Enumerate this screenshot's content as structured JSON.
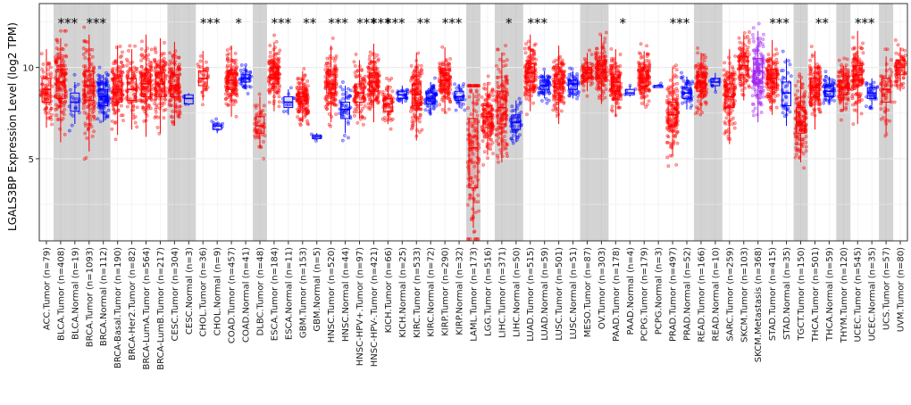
{
  "chart_data": {
    "type": "box",
    "ylabel": "LGALS3BP Expression Level (log2 TPM)",
    "ylim": [
      0.5,
      13.5
    ],
    "yticks": [
      5,
      10
    ],
    "grid": true,
    "colors": {
      "Tumor": "#ff0000",
      "Normal": "#0000ff",
      "Metastasis": "#a020f0",
      "shade": "#d3d3d3"
    },
    "categories": [
      {
        "label": "ACC.Tumor (n=79)",
        "type": "Tumor",
        "q1": 8.1,
        "median": 8.8,
        "q3": 9.4,
        "low": 6.7,
        "high": 11.0,
        "n": 79,
        "sig": "",
        "shade": false
      },
      {
        "label": "BLCA.Tumor (n=408)",
        "type": "Tumor",
        "q1": 8.3,
        "median": 9.2,
        "q3": 9.9,
        "low": 5.9,
        "high": 11.6,
        "n": 408,
        "sig": "***",
        "shade": true
      },
      {
        "label": "BLCA.Normal (n=19)",
        "type": "Normal",
        "q1": 7.6,
        "median": 8.1,
        "q3": 8.6,
        "low": 6.9,
        "high": 9.2,
        "n": 19,
        "sig": "",
        "shade": true
      },
      {
        "label": "BRCA.Tumor (n=1093)",
        "type": "Tumor",
        "q1": 8.2,
        "median": 9.0,
        "q3": 9.8,
        "low": 5.4,
        "high": 11.8,
        "n": 1093,
        "sig": "***",
        "shade": true
      },
      {
        "label": "BRCA.Normal (n=112)",
        "type": "Normal",
        "q1": 7.9,
        "median": 8.4,
        "q3": 8.8,
        "low": 7.0,
        "high": 9.6,
        "n": 112,
        "sig": "",
        "shade": true
      },
      {
        "label": "BRCA-Basal.Tumor (n=190)",
        "type": "Tumor",
        "q1": 8.1,
        "median": 8.8,
        "q3": 9.4,
        "low": 6.3,
        "high": 11.2,
        "n": 190,
        "sig": "",
        "shade": false
      },
      {
        "label": "BRCA-Her2.Tumor (n=82)",
        "type": "Tumor",
        "q1": 8.2,
        "median": 8.8,
        "q3": 9.4,
        "low": 6.6,
        "high": 11.0,
        "n": 82,
        "sig": "",
        "shade": false
      },
      {
        "label": "BRCA-LumA.Tumor (n=564)",
        "type": "Tumor",
        "q1": 8.4,
        "median": 9.1,
        "q3": 9.7,
        "low": 6.2,
        "high": 11.8,
        "n": 564,
        "sig": "",
        "shade": false
      },
      {
        "label": "BRCA-LumB.Tumor (n=217)",
        "type": "Tumor",
        "q1": 8.4,
        "median": 9.1,
        "q3": 9.7,
        "low": 6.4,
        "high": 11.6,
        "n": 217,
        "sig": "",
        "shade": false
      },
      {
        "label": "CESC.Tumor (n=304)",
        "type": "Tumor",
        "q1": 8.4,
        "median": 9.0,
        "q3": 9.6,
        "low": 6.8,
        "high": 11.4,
        "n": 304,
        "sig": "",
        "shade": true
      },
      {
        "label": "CESC.Normal (n=3)",
        "type": "Normal",
        "q1": 8.0,
        "median": 8.3,
        "q3": 8.5,
        "low": 7.9,
        "high": 8.6,
        "n": 3,
        "sig": "",
        "shade": true
      },
      {
        "label": "CHOL.Tumor (n=36)",
        "type": "Tumor",
        "q1": 9.0,
        "median": 9.4,
        "q3": 9.8,
        "low": 8.2,
        "high": 10.9,
        "n": 36,
        "sig": "***",
        "shade": false
      },
      {
        "label": "CHOL.Normal (n=9)",
        "type": "Normal",
        "q1": 6.6,
        "median": 6.8,
        "q3": 6.9,
        "low": 6.4,
        "high": 7.0,
        "n": 9,
        "sig": "",
        "shade": false
      },
      {
        "label": "COAD.Tumor (n=457)",
        "type": "Tumor",
        "q1": 8.8,
        "median": 9.3,
        "q3": 9.7,
        "low": 7.3,
        "high": 11.2,
        "n": 457,
        "sig": "*",
        "shade": false
      },
      {
        "label": "COAD.Normal (n=41)",
        "type": "Normal",
        "q1": 9.2,
        "median": 9.4,
        "q3": 9.6,
        "low": 8.8,
        "high": 10.1,
        "n": 41,
        "sig": "",
        "shade": false
      },
      {
        "label": "DLBC.Tumor (n=48)",
        "type": "Tumor",
        "q1": 6.4,
        "median": 6.8,
        "q3": 7.3,
        "low": 5.6,
        "high": 8.4,
        "n": 48,
        "sig": "",
        "shade": true
      },
      {
        "label": "ESCA.Tumor (n=184)",
        "type": "Tumor",
        "q1": 9.1,
        "median": 9.6,
        "q3": 10.0,
        "low": 7.6,
        "high": 11.4,
        "n": 184,
        "sig": "***",
        "shade": false
      },
      {
        "label": "ESCA.Normal (n=11)",
        "type": "Normal",
        "q1": 7.8,
        "median": 8.1,
        "q3": 8.4,
        "low": 7.4,
        "high": 8.8,
        "n": 11,
        "sig": "",
        "shade": false
      },
      {
        "label": "GBM.Tumor (n=153)",
        "type": "Tumor",
        "q1": 8.0,
        "median": 8.4,
        "q3": 8.8,
        "low": 7.0,
        "high": 9.8,
        "n": 153,
        "sig": "**",
        "shade": false
      },
      {
        "label": "GBM.Normal (n=5)",
        "type": "Normal",
        "q1": 6.1,
        "median": 6.2,
        "q3": 6.3,
        "low": 6.0,
        "high": 6.4,
        "n": 5,
        "sig": "",
        "shade": false
      },
      {
        "label": "HNSC.Tumor (n=520)",
        "type": "Tumor",
        "q1": 8.6,
        "median": 9.1,
        "q3": 9.6,
        "low": 7.0,
        "high": 11.2,
        "n": 520,
        "sig": "***",
        "shade": false
      },
      {
        "label": "HNSC.Normal (n=44)",
        "type": "Normal",
        "q1": 7.2,
        "median": 7.7,
        "q3": 8.1,
        "low": 6.4,
        "high": 9.0,
        "n": 44,
        "sig": "",
        "shade": false
      },
      {
        "label": "HNSC-HPV+.Tumor (n=97)",
        "type": "Tumor",
        "q1": 8.1,
        "median": 8.6,
        "q3": 9.1,
        "low": 7.2,
        "high": 10.4,
        "n": 97,
        "sig": "***",
        "shade": false
      },
      {
        "label": "HNSC-HPV-.Tumor (n=421)",
        "type": "Tumor",
        "q1": 8.7,
        "median": 9.2,
        "q3": 9.7,
        "low": 7.0,
        "high": 11.3,
        "n": 421,
        "sig": "***",
        "shade": false
      },
      {
        "label": "KICH.Tumor (n=66)",
        "type": "Tumor",
        "q1": 7.6,
        "median": 8.0,
        "q3": 8.3,
        "low": 6.9,
        "high": 9.0,
        "n": 66,
        "sig": "***",
        "shade": false
      },
      {
        "label": "KICH.Normal (n=25)",
        "type": "Normal",
        "q1": 8.3,
        "median": 8.5,
        "q3": 8.7,
        "low": 8.0,
        "high": 9.0,
        "n": 25,
        "sig": "",
        "shade": false
      },
      {
        "label": "KIRC.Tumor (n=533)",
        "type": "Tumor",
        "q1": 7.9,
        "median": 8.5,
        "q3": 9.1,
        "low": 6.0,
        "high": 10.8,
        "n": 533,
        "sig": "**",
        "shade": false
      },
      {
        "label": "KIRC.Normal (n=72)",
        "type": "Normal",
        "q1": 8.0,
        "median": 8.3,
        "q3": 8.6,
        "low": 7.4,
        "high": 9.2,
        "n": 72,
        "sig": "",
        "shade": false
      },
      {
        "label": "KIRP.Tumor (n=290)",
        "type": "Tumor",
        "q1": 8.8,
        "median": 9.3,
        "q3": 9.7,
        "low": 7.5,
        "high": 11.1,
        "n": 290,
        "sig": "***",
        "shade": false
      },
      {
        "label": "KIRP.Normal (n=32)",
        "type": "Normal",
        "q1": 8.2,
        "median": 8.4,
        "q3": 8.7,
        "low": 7.8,
        "high": 9.1,
        "n": 32,
        "sig": "",
        "shade": false
      },
      {
        "label": "LAML.Tumor (n=173)",
        "type": "Tumor",
        "q1": 3.4,
        "median": 5.6,
        "q3": 7.2,
        "low": 1.2,
        "high": 8.6,
        "n": 173,
        "sig": "",
        "shade": true
      },
      {
        "label": "LGG.Tumor (n=516)",
        "type": "Tumor",
        "q1": 6.7,
        "median": 7.3,
        "q3": 7.9,
        "low": 5.2,
        "high": 9.2,
        "n": 516,
        "sig": "",
        "shade": false
      },
      {
        "label": "LIHC.Tumor (n=371)",
        "type": "Tumor",
        "q1": 6.9,
        "median": 7.8,
        "q3": 8.7,
        "low": 4.8,
        "high": 10.8,
        "n": 371,
        "sig": "*",
        "shade": true
      },
      {
        "label": "LIHC.Normal (n=50)",
        "type": "Normal",
        "q1": 6.6,
        "median": 7.0,
        "q3": 7.4,
        "low": 5.9,
        "high": 8.2,
        "n": 50,
        "sig": "",
        "shade": true
      },
      {
        "label": "LUAD.Tumor (n=515)",
        "type": "Tumor",
        "q1": 9.2,
        "median": 9.7,
        "q3": 10.2,
        "low": 7.6,
        "high": 11.8,
        "n": 515,
        "sig": "***",
        "shade": false
      },
      {
        "label": "LUAD.Normal (n=59)",
        "type": "Normal",
        "q1": 8.8,
        "median": 9.0,
        "q3": 9.3,
        "low": 8.3,
        "high": 9.8,
        "n": 59,
        "sig": "",
        "shade": false
      },
      {
        "label": "LUSC.Tumor (n=501)",
        "type": "Tumor",
        "q1": 8.6,
        "median": 9.1,
        "q3": 9.6,
        "low": 6.9,
        "high": 11.2,
        "n": 501,
        "sig": "",
        "shade": false
      },
      {
        "label": "LUSC.Normal (n=51)",
        "type": "Normal",
        "q1": 8.8,
        "median": 9.1,
        "q3": 9.3,
        "low": 8.3,
        "high": 9.8,
        "n": 51,
        "sig": "",
        "shade": false
      },
      {
        "label": "MESO.Tumor (n=87)",
        "type": "Tumor",
        "q1": 9.4,
        "median": 9.7,
        "q3": 10.0,
        "low": 8.7,
        "high": 10.8,
        "n": 87,
        "sig": "",
        "shade": true
      },
      {
        "label": "OV.Tumor (n=303)",
        "type": "Tumor",
        "q1": 9.4,
        "median": 9.9,
        "q3": 10.4,
        "low": 8.0,
        "high": 11.8,
        "n": 303,
        "sig": "",
        "shade": true
      },
      {
        "label": "PAAD.Tumor (n=178)",
        "type": "Tumor",
        "q1": 8.7,
        "median": 9.2,
        "q3": 9.6,
        "low": 7.3,
        "high": 11.0,
        "n": 178,
        "sig": "*",
        "shade": false
      },
      {
        "label": "PAAD.Normal (n=4)",
        "type": "Normal",
        "q1": 8.5,
        "median": 8.6,
        "q3": 8.8,
        "low": 8.4,
        "high": 9.0,
        "n": 4,
        "sig": "",
        "shade": false
      },
      {
        "label": "PCPG.Tumor (n=179)",
        "type": "Tumor",
        "q1": 9.0,
        "median": 9.4,
        "q3": 9.8,
        "low": 7.9,
        "high": 10.9,
        "n": 179,
        "sig": "",
        "shade": false
      },
      {
        "label": "PCPG.Normal (n=3)",
        "type": "Normal",
        "q1": 8.9,
        "median": 9.0,
        "q3": 9.0,
        "low": 8.9,
        "high": 9.1,
        "n": 3,
        "sig": "",
        "shade": false
      },
      {
        "label": "PRAD.Tumor (n=497)",
        "type": "Tumor",
        "q1": 6.8,
        "median": 7.4,
        "q3": 8.1,
        "low": 5.2,
        "high": 10.0,
        "n": 497,
        "sig": "***",
        "shade": false
      },
      {
        "label": "PRAD.Normal (n=52)",
        "type": "Normal",
        "q1": 8.3,
        "median": 8.6,
        "q3": 8.9,
        "low": 7.7,
        "high": 9.5,
        "n": 52,
        "sig": "",
        "shade": false
      },
      {
        "label": "READ.Tumor (n=166)",
        "type": "Tumor",
        "q1": 8.7,
        "median": 9.2,
        "q3": 9.6,
        "low": 7.6,
        "high": 10.8,
        "n": 166,
        "sig": "",
        "shade": true
      },
      {
        "label": "READ.Normal (n=10)",
        "type": "Normal",
        "q1": 9.0,
        "median": 9.2,
        "q3": 9.4,
        "low": 8.7,
        "high": 9.7,
        "n": 10,
        "sig": "",
        "shade": true
      },
      {
        "label": "SARC.Tumor (n=259)",
        "type": "Tumor",
        "q1": 7.8,
        "median": 8.4,
        "q3": 9.1,
        "low": 5.8,
        "high": 11.0,
        "n": 259,
        "sig": "",
        "shade": false
      },
      {
        "label": "SKCM.Tumor (n=103)",
        "type": "Tumor",
        "q1": 9.6,
        "median": 10.1,
        "q3": 10.6,
        "low": 8.2,
        "high": 11.8,
        "n": 103,
        "sig": "",
        "shade": false
      },
      {
        "label": "SKCM.Metastasis (n=368)",
        "type": "Metastasis",
        "q1": 9.1,
        "median": 9.8,
        "q3": 10.5,
        "low": 7.0,
        "high": 12.0,
        "n": 368,
        "sig": "",
        "shade": false
      },
      {
        "label": "STAD.Tumor (n=415)",
        "type": "Tumor",
        "q1": 8.9,
        "median": 9.4,
        "q3": 9.9,
        "low": 7.4,
        "high": 11.5,
        "n": 415,
        "sig": "***",
        "shade": false
      },
      {
        "label": "STAD.Normal (n=35)",
        "type": "Normal",
        "q1": 7.9,
        "median": 8.6,
        "q3": 9.2,
        "low": 6.8,
        "high": 10.5,
        "n": 35,
        "sig": "",
        "shade": false
      },
      {
        "label": "TGCT.Tumor (n=150)",
        "type": "Tumor",
        "q1": 6.4,
        "median": 7.0,
        "q3": 7.8,
        "low": 4.8,
        "high": 9.4,
        "n": 150,
        "sig": "",
        "shade": true
      },
      {
        "label": "THCA.Tumor (n=501)",
        "type": "Tumor",
        "q1": 8.4,
        "median": 8.9,
        "q3": 9.4,
        "low": 6.6,
        "high": 10.9,
        "n": 501,
        "sig": "**",
        "shade": false
      },
      {
        "label": "THCA.Normal (n=59)",
        "type": "Normal",
        "q1": 8.4,
        "median": 8.7,
        "q3": 9.0,
        "low": 8.0,
        "high": 9.5,
        "n": 59,
        "sig": "",
        "shade": false
      },
      {
        "label": "THYM.Tumor (n=120)",
        "type": "Tumor",
        "q1": 8.5,
        "median": 8.9,
        "q3": 9.3,
        "low": 7.6,
        "high": 10.1,
        "n": 120,
        "sig": "",
        "shade": true
      },
      {
        "label": "UCEC.Tumor (n=545)",
        "type": "Tumor",
        "q1": 9.0,
        "median": 9.6,
        "q3": 10.1,
        "low": 6.9,
        "high": 12.0,
        "n": 545,
        "sig": "***",
        "shade": false
      },
      {
        "label": "UCEC.Normal (n=35)",
        "type": "Normal",
        "q1": 8.3,
        "median": 8.6,
        "q3": 8.9,
        "low": 7.9,
        "high": 9.4,
        "n": 35,
        "sig": "",
        "shade": false
      },
      {
        "label": "UCS.Tumor (n=57)",
        "type": "Tumor",
        "q1": 8.1,
        "median": 8.8,
        "q3": 9.4,
        "low": 6.4,
        "high": 10.6,
        "n": 57,
        "sig": "",
        "shade": true
      },
      {
        "label": "UVM.Tumor (n=80)",
        "type": "Tumor",
        "q1": 9.6,
        "median": 10.0,
        "q3": 10.4,
        "low": 8.7,
        "high": 11.1,
        "n": 80,
        "sig": "",
        "shade": false
      }
    ]
  }
}
